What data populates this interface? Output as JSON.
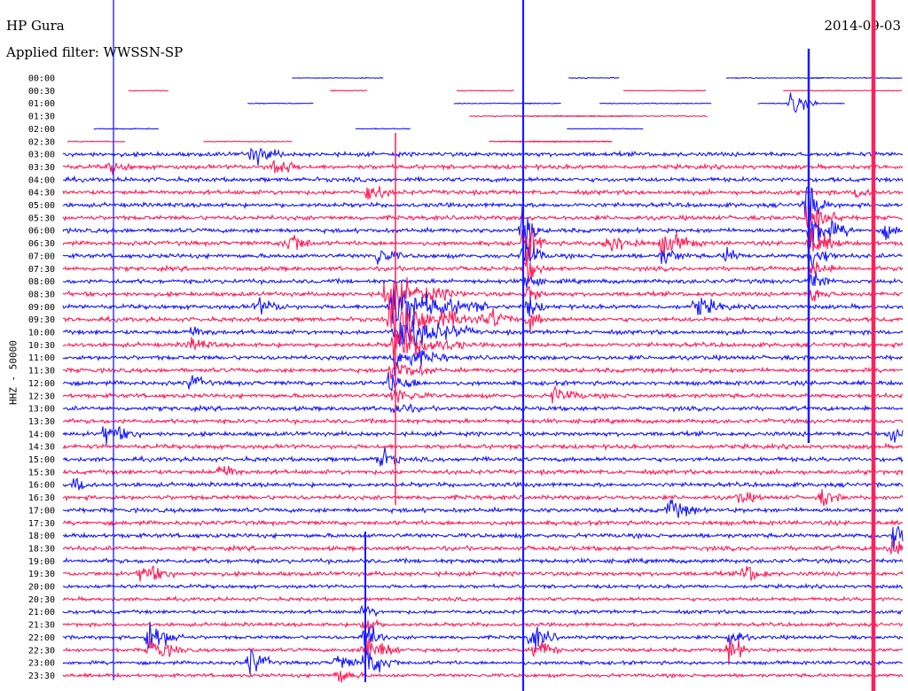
{
  "header": {
    "station": "HP Gura",
    "filter_text": "Applied filter: WWSSN-SP",
    "date": "2014-09-03"
  },
  "chart_data": {
    "type": "line",
    "subtype": "helicorder",
    "title": "HP Gura",
    "subtitle": "Applied filter: WWSSN-SP",
    "date": "2014-09-03",
    "ylabel": "HHZ - 50000",
    "row_labels": [
      "00:00",
      "00:30",
      "01:00",
      "01:30",
      "02:00",
      "02:30",
      "03:00",
      "03:30",
      "04:00",
      "04:30",
      "05:00",
      "05:30",
      "06:00",
      "06:30",
      "07:00",
      "07:30",
      "08:00",
      "08:30",
      "09:00",
      "09:30",
      "10:00",
      "10:30",
      "11:00",
      "11:30",
      "12:00",
      "12:30",
      "13:00",
      "13:30",
      "14:00",
      "14:30",
      "15:00",
      "15:30",
      "16:00",
      "16:30",
      "17:00",
      "17:30",
      "18:00",
      "18:30",
      "19:00",
      "19:30",
      "20:00",
      "20:30",
      "21:00",
      "21:30",
      "22:00",
      "22:30",
      "23:00",
      "23:30"
    ],
    "trace_colors": [
      "#1a1aff",
      "#ff1f5a"
    ],
    "grid": false
  }
}
